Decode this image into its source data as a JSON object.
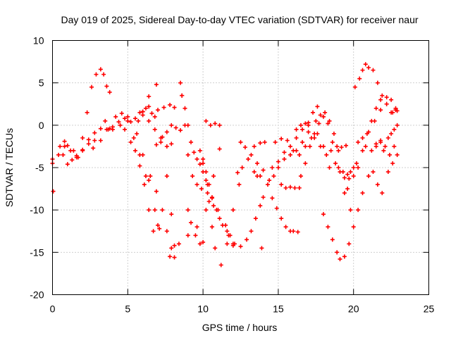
{
  "chart_data": {
    "type": "scatter",
    "title": "Day 019 of 2025, Sidereal Day-to-day VTEC variation (SDTVAR) for receiver naur",
    "xlabel": "GPS time / hours",
    "ylabel": "SDTVAR / TECUs",
    "xlim": [
      0,
      25
    ],
    "ylim": [
      -20,
      10
    ],
    "xticks": [
      0,
      5,
      10,
      15,
      20,
      25
    ],
    "yticks": [
      -20,
      -15,
      -10,
      -5,
      0,
      5,
      10
    ],
    "grid": true,
    "marker": "plus",
    "color": "#ff0000",
    "series": [
      {
        "x": [
          0.0,
          0.5,
          0.8,
          1.0,
          1.3,
          1.6,
          2.0,
          2.3,
          2.6,
          2.9,
          3.2,
          3.4,
          3.6,
          3.8
        ],
        "y": [
          -4.0,
          -2.5,
          -1.9,
          -2.4,
          -4.1,
          -3.6,
          -1.5,
          1.5,
          4.5,
          6.0,
          6.6,
          6.0,
          4.6,
          3.9
        ]
      },
      {
        "x": [
          0.0,
          0.4,
          0.8,
          1.2,
          1.6,
          2.0,
          2.4,
          2.8
        ],
        "y": [
          -4.5,
          -3.5,
          -2.5,
          -3.0,
          -3.8,
          -3.0,
          -2.2,
          -1.8
        ]
      },
      {
        "x": [
          0.05
        ],
        "y": [
          -7.8
        ]
      },
      {
        "x": [
          0.7,
          1.0,
          1.4,
          1.7,
          2.0,
          2.4,
          2.8,
          3.2,
          3.6,
          3.8
        ],
        "y": [
          -3.5,
          -4.6,
          -3.0,
          -3.8,
          -2.9,
          -1.7,
          -0.9,
          -0.4,
          -0.5,
          -0.4
        ]
      },
      {
        "x": [
          2.7,
          3.2,
          3.7,
          4.2,
          4.6,
          5.0,
          5.4,
          5.8,
          6.2
        ],
        "y": [
          -2.7,
          -1.8,
          -0.5,
          1.0,
          1.4,
          0.5,
          -1.5,
          -3.5,
          -6.0
        ]
      },
      {
        "x": [
          3.5,
          4.0,
          4.5,
          5.0,
          5.5,
          6.0,
          6.4,
          6.9
        ],
        "y": [
          0.5,
          -0.2,
          0.0,
          1.0,
          0.8,
          1.6,
          3.4,
          4.8
        ]
      },
      {
        "x": [
          4.0,
          4.4,
          4.8,
          5.2,
          5.6,
          6.0,
          6.4,
          6.8,
          7.0,
          7.1
        ],
        "y": [
          -0.5,
          0.4,
          0.8,
          0.4,
          -1.0,
          -3.5,
          -6.5,
          -10.0,
          -11.8,
          -12.2
        ]
      },
      {
        "x": [
          4.8,
          5.2,
          5.5,
          5.8,
          6.1,
          6.4,
          6.7
        ],
        "y": [
          -0.5,
          -2.0,
          -3.0,
          -4.8,
          -7.0,
          -10.0,
          -12.5
        ]
      },
      {
        "x": [
          5.7,
          6.0,
          6.4,
          6.8,
          7.2,
          7.6,
          7.9,
          8.1
        ],
        "y": [
          0.5,
          1.6,
          2.2,
          1.0,
          -1.5,
          -6.0,
          -10.5,
          -14.2
        ]
      },
      {
        "x": [
          5.8,
          6.2,
          6.6,
          7.0,
          7.4,
          7.8,
          8.1
        ],
        "y": [
          1.5,
          2.0,
          1.4,
          1.8,
          2.1,
          2.4,
          2.1
        ]
      },
      {
        "x": [
          6.0,
          6.4,
          6.8,
          7.2,
          7.6,
          7.9
        ],
        "y": [
          1.2,
          0.5,
          -0.5,
          -2.0,
          -2.5,
          -2.2
        ]
      },
      {
        "x": [
          6.9,
          7.3,
          7.6,
          7.9,
          8.2,
          8.5
        ],
        "y": [
          -2.3,
          -1.4,
          -0.8,
          0.0,
          -0.3,
          -0.6
        ]
      },
      {
        "x": [
          6.5,
          6.9,
          7.3,
          7.6,
          7.9,
          8.1
        ],
        "y": [
          -6.0,
          -7.8,
          -10.0,
          -12.5,
          -14.5,
          -15.6
        ]
      },
      {
        "x": [
          7.8,
          8.4,
          9.0,
          9.6,
          10.2,
          10.7,
          11.1
        ],
        "y": [
          -15.5,
          -14.0,
          -13.0,
          -12.0,
          -10.0,
          -6.0,
          -2.8
        ]
      },
      {
        "x": [
          8.5,
          8.6,
          8.8,
          9.0,
          9.3,
          9.6,
          9.9,
          10.3,
          10.7,
          11.1,
          11.6,
          12.0
        ],
        "y": [
          5.0,
          3.5,
          0.0,
          -3.5,
          -6.0,
          -7.0,
          -7.5,
          -8.0,
          -9.5,
          -11.0,
          -12.5,
          -14.2
        ]
      },
      {
        "x": [
          8.6,
          8.8,
          9.0,
          9.2,
          9.4,
          9.6,
          9.8,
          10.0,
          10.3,
          10.6,
          11.0,
          11.5,
          11.8,
          12.0
        ],
        "y": [
          3.5,
          2.0,
          0.0,
          -2.0,
          -3.2,
          -4.0,
          -4.6,
          -5.5,
          -7.0,
          -8.6,
          -10.0,
          -11.8,
          -13.0,
          -14.0
        ]
      },
      {
        "x": [
          9.0,
          9.2,
          9.5,
          9.8,
          10.0
        ],
        "y": [
          -10.0,
          -11.5,
          -13.0,
          -14.0,
          -13.8
        ]
      },
      {
        "x": [
          9.8,
          10.0,
          10.2,
          10.4,
          10.6,
          10.9,
          11.3,
          11.7,
          12.1,
          12.5
        ],
        "y": [
          -3.0,
          -4.0,
          -5.5,
          -7.0,
          -8.5,
          -10.0,
          -11.8,
          -13.0,
          -14.0,
          -14.3
        ]
      },
      {
        "x": [
          10.0,
          10.2,
          10.4,
          10.6,
          10.8,
          11.2,
          11.6,
          12.0,
          12.4
        ],
        "y": [
          -4.5,
          -6.5,
          -9.0,
          -12.0,
          -14.5,
          -16.5,
          -14.0,
          -10.0,
          -7.0
        ]
      },
      {
        "x": [
          10.2,
          10.5,
          10.8,
          11.1
        ],
        "y": [
          0.5,
          0.0,
          0.2,
          0.0
        ]
      },
      {
        "x": [
          12.5,
          12.8,
          13.2,
          13.6,
          14.0
        ],
        "y": [
          -2.0,
          -2.6,
          -3.5,
          -4.5,
          -5.3
        ]
      },
      {
        "x": [
          12.3,
          12.6,
          13.0,
          13.4,
          13.8,
          14.1
        ],
        "y": [
          -5.6,
          -5.0,
          -4.0,
          -2.5,
          -2.1,
          -2.0
        ]
      },
      {
        "x": [
          12.9,
          13.2,
          13.5,
          13.8,
          14.0
        ],
        "y": [
          -13.5,
          -12.5,
          -11.0,
          -9.5,
          -8.5
        ]
      },
      {
        "x": [
          13.4,
          13.6,
          13.8
        ],
        "y": [
          -5.5,
          -6.0,
          -6.0
        ]
      },
      {
        "x": [
          13.9
        ],
        "y": [
          -14.5
        ]
      },
      {
        "x": [
          14.3,
          14.6,
          14.9,
          15.2,
          15.5,
          15.8,
          16.0,
          16.3
        ],
        "y": [
          -7.0,
          -8.6,
          -9.8,
          -11.0,
          -12.0,
          -12.5,
          -12.5,
          -12.6
        ]
      },
      {
        "x": [
          14.4,
          14.7,
          15.0,
          15.4,
          15.8,
          16.2,
          16.6,
          17.0,
          17.3,
          17.6
        ],
        "y": [
          -6.5,
          -6.0,
          -5.0,
          -4.0,
          -3.5,
          -3.0,
          -2.0,
          0.0,
          1.5,
          2.2
        ]
      },
      {
        "x": [
          14.6,
          15.0,
          15.4,
          15.8,
          16.2,
          16.6,
          17.0,
          17.4,
          17.8,
          18.2
        ],
        "y": [
          -5.0,
          -4.3,
          -3.2,
          -2.5,
          -1.5,
          -0.5,
          -0.8,
          -1.5,
          -2.5,
          -3.5
        ]
      },
      {
        "x": [
          14.8,
          15.2,
          15.6,
          16.0,
          16.4,
          16.8,
          17.2,
          17.6,
          18.0,
          18.4
        ],
        "y": [
          -2.0,
          -1.6,
          -1.8,
          -3.0,
          -3.5,
          -2.5,
          -1.5,
          -1.0,
          -2.5,
          -5.0
        ]
      },
      {
        "x": [
          15.2,
          15.5,
          15.8,
          16.1,
          16.4
        ],
        "y": [
          -7.0,
          -7.4,
          -7.3,
          -7.4,
          -7.4
        ]
      },
      {
        "x": [
          16.2,
          16.5,
          16.8,
          17.0
        ],
        "y": [
          -0.5,
          0.0,
          0.2,
          0.3
        ]
      },
      {
        "x": [
          16.5,
          16.8,
          17.1,
          17.4,
          17.7,
          18.0,
          18.3,
          18.6,
          19.0,
          19.4,
          19.8
        ],
        "y": [
          -6.0,
          -4.5,
          -2.5,
          -1.0,
          0.2,
          1.0,
          0.2,
          -2.0,
          -5.0,
          -8.0,
          -10.0
        ]
      },
      {
        "x": [
          17.5,
          17.8,
          18.1,
          18.4,
          18.7,
          19.0,
          19.3,
          19.6
        ],
        "y": [
          0.5,
          1.2,
          1.5,
          0.5,
          -1.0,
          -3.0,
          -5.5,
          -7.5
        ]
      },
      {
        "x": [
          18.5,
          18.8,
          19.1,
          19.4,
          19.7,
          20.0,
          20.3,
          20.6,
          20.9,
          21.2,
          21.5,
          21.8,
          22.2,
          22.5,
          22.8
        ],
        "y": [
          -3.0,
          -4.5,
          -5.5,
          -6.2,
          -6.3,
          -6.0,
          -5.0,
          -3.0,
          -1.0,
          0.5,
          2.0,
          3.0,
          3.3,
          3.0,
          2.0
        ]
      },
      {
        "x": [
          18.9,
          19.2,
          19.5
        ],
        "y": [
          -2.5,
          -2.6,
          -2.4
        ]
      },
      {
        "x": [
          19.6,
          19.8,
          20.0,
          20.2
        ],
        "y": [
          -5.8,
          -5.5,
          -5.0,
          -4.5
        ]
      },
      {
        "x": [
          18.0,
          18.3,
          18.6,
          18.9,
          19.1,
          19.4,
          19.7,
          20.0,
          20.3,
          20.6,
          21.0,
          21.3,
          21.6,
          21.9
        ],
        "y": [
          -10.5,
          -12.0,
          -13.5,
          -15.0,
          -15.8,
          -15.5,
          -14.0,
          -12.0,
          -10.0,
          -8.0,
          -6.0,
          -5.5,
          -7.0,
          -8.0
        ]
      },
      {
        "x": [
          20.1,
          20.4,
          20.6,
          20.8,
          21.0,
          21.3,
          21.6,
          21.9,
          22.2,
          22.5,
          22.8
        ],
        "y": [
          4.5,
          5.5,
          6.5,
          7.2,
          6.8,
          6.5,
          5.0,
          3.5,
          2.5,
          1.5,
          1.8
        ]
      },
      {
        "x": [
          20.8,
          21.2,
          21.5,
          21.8,
          22.1,
          22.4,
          22.7
        ],
        "y": [
          -2.5,
          -3.0,
          -2.2,
          -1.8,
          -2.5,
          -3.5,
          -2.5
        ]
      },
      {
        "x": [
          21.5,
          21.8,
          22.0,
          22.3,
          22.6,
          22.9
        ],
        "y": [
          -2.5,
          -2.0,
          -3.0,
          -5.5,
          -4.5,
          -3.5
        ]
      },
      {
        "x": [
          20.3,
          20.6,
          21.0,
          21.4,
          21.8,
          22.2,
          22.6,
          22.9
        ],
        "y": [
          -2.0,
          -1.5,
          -0.8,
          0.5,
          1.8,
          2.5,
          1.5,
          1.7
        ]
      },
      {
        "x": [
          22.3,
          22.5,
          22.7,
          22.9
        ],
        "y": [
          -1.5,
          -1.0,
          -0.5,
          0.0
        ]
      }
    ]
  }
}
